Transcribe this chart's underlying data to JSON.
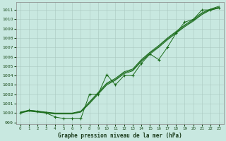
{
  "xlabel": "Graphe pression niveau de la mer (hPa)",
  "ylim": [
    998.8,
    1011.8
  ],
  "xlim": [
    -0.5,
    23.5
  ],
  "yticks": [
    999,
    1000,
    1001,
    1002,
    1003,
    1004,
    1005,
    1006,
    1007,
    1008,
    1009,
    1010,
    1011
  ],
  "xticks": [
    0,
    1,
    2,
    3,
    4,
    5,
    6,
    7,
    8,
    9,
    10,
    11,
    12,
    13,
    14,
    15,
    16,
    17,
    18,
    19,
    20,
    21,
    22,
    23
  ],
  "bg_color": "#c8e8e0",
  "grid_color": "#aac8c0",
  "line_color": "#1a6b1a",
  "smooth1": [
    1000.0,
    1000.2,
    1000.1,
    1000.0,
    999.9,
    999.9,
    999.9,
    1000.1,
    1001.0,
    1002.0,
    1003.0,
    1003.5,
    1004.2,
    1004.5,
    1005.5,
    1006.3,
    1007.0,
    1007.8,
    1008.5,
    1009.2,
    1009.8,
    1010.5,
    1011.0,
    1011.2
  ],
  "smooth2": [
    1000.1,
    1000.3,
    1000.2,
    1000.1,
    1000.0,
    1000.0,
    1000.0,
    1000.2,
    1001.2,
    1002.2,
    1003.2,
    1003.7,
    1004.4,
    1004.7,
    1005.7,
    1006.5,
    1007.2,
    1008.0,
    1008.7,
    1009.4,
    1010.0,
    1010.7,
    1011.1,
    1011.4
  ],
  "smooth3": [
    1000.05,
    1000.25,
    1000.15,
    1000.05,
    999.95,
    999.95,
    999.95,
    1000.15,
    1001.1,
    1002.1,
    1003.1,
    1003.6,
    1004.3,
    1004.6,
    1005.6,
    1006.4,
    1007.1,
    1007.9,
    1008.6,
    1009.3,
    1009.9,
    1010.6,
    1011.05,
    1011.3
  ],
  "wiggly": [
    1000.0,
    1000.3,
    1000.2,
    1000.0,
    999.6,
    999.4,
    999.4,
    999.4,
    1002.0,
    1002.0,
    1004.1,
    1003.0,
    1004.0,
    1004.0,
    1005.3,
    1006.3,
    1005.7,
    1007.0,
    1008.5,
    1009.7,
    1010.0,
    1011.0,
    1011.0,
    1011.2
  ]
}
